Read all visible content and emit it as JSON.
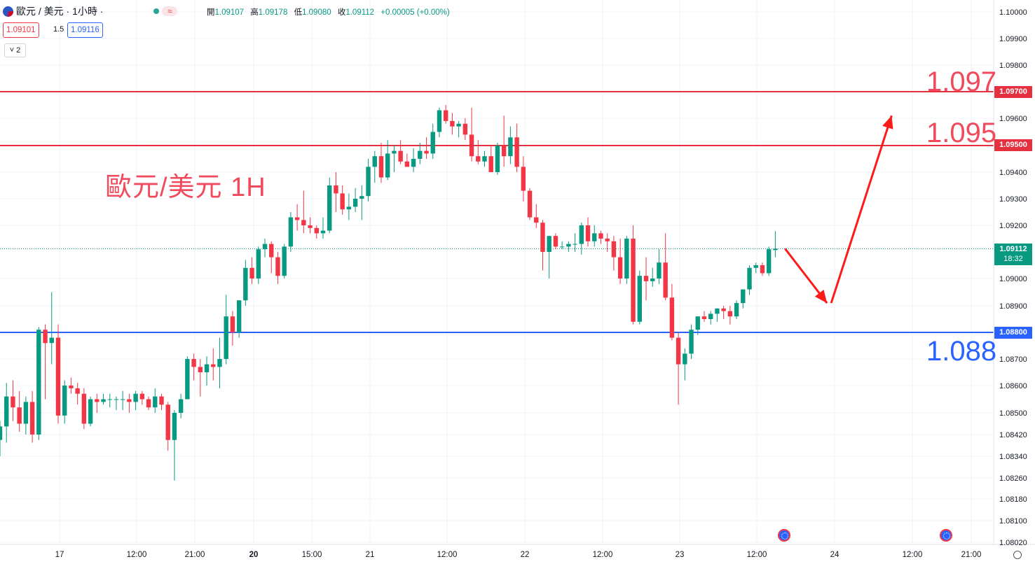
{
  "header": {
    "symbol": "歐元 / 美元 · 1小時 ·",
    "ohlc": [
      {
        "k": "開",
        "v": "1.09107"
      },
      {
        "k": "高",
        "v": "1.09178"
      },
      {
        "k": "低",
        "v": "1.09080"
      },
      {
        "k": "收",
        "v": "1.09112"
      },
      {
        "k": "",
        "v": "+0.00005 (+0.00%)"
      }
    ],
    "sell_price": "1.09101",
    "spread": "1.5",
    "buy_price": "1.09116",
    "indicator_toggle": "˅ 2",
    "wave_icon": "≈"
  },
  "annotation": {
    "title": "歐元/美元 1H",
    "level_1097": "1.097",
    "level_1095": "1.095",
    "level_1088": "1.088"
  },
  "price_tags": {
    "tag_1097": "1.09700",
    "tag_1095": "1.09500",
    "tag_1088": "1.08800",
    "current_price": "1.09112",
    "countdown": "18:32"
  },
  "colors": {
    "up": "#089981",
    "down": "#f23645",
    "resistance": "#e5303f",
    "support": "#2962ff",
    "arrow": "#ff1a1a"
  },
  "chart_data": {
    "type": "candlestick",
    "symbol": "EUR/USD",
    "interval": "1H",
    "y_axis_ticks": [
      1.1,
      1.099,
      1.098,
      1.097,
      1.096,
      1.095,
      1.094,
      1.093,
      1.092,
      1.09112,
      1.09,
      1.089,
      1.088,
      1.087,
      1.086,
      1.085,
      1.0842,
      1.0834,
      1.0826,
      1.0818,
      1.081,
      1.0802
    ],
    "y_axis_labels": [
      "1.10000",
      "1.09900",
      "1.09800",
      "1.09700",
      "1.09600",
      "1.09500",
      "1.09400",
      "1.09300",
      "1.09200",
      "",
      "1.09000",
      "1.08900",
      "",
      "1.08700",
      "1.08600",
      "1.08500",
      "1.08420",
      "1.08340",
      "1.08260",
      "1.08180",
      "1.08100",
      "1.08020"
    ],
    "x_axis_labels": [
      "17",
      "12:00",
      "21:00",
      "20",
      "15:00",
      "21",
      "12:00",
      "22",
      "12:00",
      "23",
      "12:00",
      "24",
      "12:00",
      "21:00"
    ],
    "x_axis_bold": [
      "20"
    ],
    "horizontal_levels": [
      {
        "price": 1.097,
        "color": "resistance"
      },
      {
        "price": 1.095,
        "color": "resistance"
      },
      {
        "price": 1.088,
        "color": "support"
      }
    ],
    "current_price": 1.09112,
    "projection": [
      {
        "from_candle": 110,
        "to_offset": 8,
        "to_price": 1.0891
      },
      {
        "to_offset": 18,
        "to_price": 1.0961
      }
    ],
    "candles": [
      {
        "o": 1.084,
        "h": 1.0847,
        "l": 1.0834,
        "c": 1.0845
      },
      {
        "o": 1.0845,
        "h": 1.0861,
        "l": 1.0839,
        "c": 1.0856
      },
      {
        "o": 1.0856,
        "h": 1.0862,
        "l": 1.0847,
        "c": 1.0852
      },
      {
        "o": 1.0852,
        "h": 1.0858,
        "l": 1.0843,
        "c": 1.0846
      },
      {
        "o": 1.0846,
        "h": 1.0856,
        "l": 1.0842,
        "c": 1.0854
      },
      {
        "o": 1.0854,
        "h": 1.0858,
        "l": 1.0839,
        "c": 1.0842
      },
      {
        "o": 1.0842,
        "h": 1.0882,
        "l": 1.084,
        "c": 1.0881
      },
      {
        "o": 1.0881,
        "h": 1.0883,
        "l": 1.0855,
        "c": 1.0876
      },
      {
        "o": 1.0876,
        "h": 1.0895,
        "l": 1.0868,
        "c": 1.0878
      },
      {
        "o": 1.0878,
        "h": 1.0883,
        "l": 1.0846,
        "c": 1.0849
      },
      {
        "o": 1.0849,
        "h": 1.0862,
        "l": 1.0846,
        "c": 1.086
      },
      {
        "o": 1.086,
        "h": 1.0863,
        "l": 1.0857,
        "c": 1.0859
      },
      {
        "o": 1.0859,
        "h": 1.0861,
        "l": 1.0853,
        "c": 1.0857
      },
      {
        "o": 1.0857,
        "h": 1.0859,
        "l": 1.0844,
        "c": 1.0846
      },
      {
        "o": 1.0846,
        "h": 1.0856,
        "l": 1.0845,
        "c": 1.0855
      },
      {
        "o": 1.0855,
        "h": 1.0857,
        "l": 1.085,
        "c": 1.0854
      },
      {
        "o": 1.0854,
        "h": 1.0857,
        "l": 1.0853,
        "c": 1.0855
      },
      {
        "o": 1.0855,
        "h": 1.0857,
        "l": 1.0852,
        "c": 1.0855
      },
      {
        "o": 1.0855,
        "h": 1.0856,
        "l": 1.0851,
        "c": 1.0855
      },
      {
        "o": 1.0855,
        "h": 1.0858,
        "l": 1.0851,
        "c": 1.0855
      },
      {
        "o": 1.0855,
        "h": 1.0857,
        "l": 1.085,
        "c": 1.0854
      },
      {
        "o": 1.0854,
        "h": 1.0858,
        "l": 1.0851,
        "c": 1.0857
      },
      {
        "o": 1.0857,
        "h": 1.0858,
        "l": 1.0853,
        "c": 1.0855
      },
      {
        "o": 1.0855,
        "h": 1.0856,
        "l": 1.0851,
        "c": 1.0852
      },
      {
        "o": 1.0852,
        "h": 1.0859,
        "l": 1.085,
        "c": 1.0856
      },
      {
        "o": 1.0856,
        "h": 1.0857,
        "l": 1.0851,
        "c": 1.0853
      },
      {
        "o": 1.0853,
        "h": 1.0854,
        "l": 1.0836,
        "c": 1.084
      },
      {
        "o": 1.084,
        "h": 1.0851,
        "l": 1.0825,
        "c": 1.085
      },
      {
        "o": 1.085,
        "h": 1.0857,
        "l": 1.0848,
        "c": 1.0855
      },
      {
        "o": 1.0855,
        "h": 1.0871,
        "l": 1.0855,
        "c": 1.087
      },
      {
        "o": 1.087,
        "h": 1.0872,
        "l": 1.0862,
        "c": 1.0867
      },
      {
        "o": 1.0867,
        "h": 1.087,
        "l": 1.0856,
        "c": 1.0865
      },
      {
        "o": 1.0865,
        "h": 1.0871,
        "l": 1.086,
        "c": 1.0868
      },
      {
        "o": 1.0868,
        "h": 1.0874,
        "l": 1.0862,
        "c": 1.0867
      },
      {
        "o": 1.0867,
        "h": 1.0878,
        "l": 1.0859,
        "c": 1.087
      },
      {
        "o": 1.087,
        "h": 1.0894,
        "l": 1.0868,
        "c": 1.0886
      },
      {
        "o": 1.0886,
        "h": 1.0888,
        "l": 1.0875,
        "c": 1.088
      },
      {
        "o": 1.088,
        "h": 1.0892,
        "l": 1.0878,
        "c": 1.0892
      },
      {
        "o": 1.0892,
        "h": 1.0907,
        "l": 1.089,
        "c": 1.0904
      },
      {
        "o": 1.0904,
        "h": 1.0908,
        "l": 1.0898,
        "c": 1.09
      },
      {
        "o": 1.09,
        "h": 1.0912,
        "l": 1.0898,
        "c": 1.0911
      },
      {
        "o": 1.0911,
        "h": 1.0915,
        "l": 1.0908,
        "c": 1.0913
      },
      {
        "o": 1.0913,
        "h": 1.0914,
        "l": 1.0902,
        "c": 1.0908
      },
      {
        "o": 1.0908,
        "h": 1.091,
        "l": 1.0898,
        "c": 1.0901
      },
      {
        "o": 1.0901,
        "h": 1.0913,
        "l": 1.09,
        "c": 1.0912
      },
      {
        "o": 1.0912,
        "h": 1.0925,
        "l": 1.091,
        "c": 1.0923
      },
      {
        "o": 1.0923,
        "h": 1.0928,
        "l": 1.0918,
        "c": 1.0922
      },
      {
        "o": 1.0922,
        "h": 1.0933,
        "l": 1.0917,
        "c": 1.092
      },
      {
        "o": 1.092,
        "h": 1.0923,
        "l": 1.0917,
        "c": 1.0919
      },
      {
        "o": 1.0919,
        "h": 1.092,
        "l": 1.0915,
        "c": 1.0917
      },
      {
        "o": 1.0917,
        "h": 1.0923,
        "l": 1.0915,
        "c": 1.0918
      },
      {
        "o": 1.0918,
        "h": 1.0938,
        "l": 1.0917,
        "c": 1.0935
      },
      {
        "o": 1.0935,
        "h": 1.094,
        "l": 1.0925,
        "c": 1.0932
      },
      {
        "o": 1.0932,
        "h": 1.0935,
        "l": 1.0924,
        "c": 1.0926
      },
      {
        "o": 1.0926,
        "h": 1.0932,
        "l": 1.0922,
        "c": 1.0927
      },
      {
        "o": 1.0927,
        "h": 1.0934,
        "l": 1.0925,
        "c": 1.093
      },
      {
        "o": 1.093,
        "h": 1.0935,
        "l": 1.0922,
        "c": 1.0931
      },
      {
        "o": 1.0931,
        "h": 1.0945,
        "l": 1.0929,
        "c": 1.0942
      },
      {
        "o": 1.0942,
        "h": 1.0948,
        "l": 1.0936,
        "c": 1.0946
      },
      {
        "o": 1.0946,
        "h": 1.0951,
        "l": 1.0936,
        "c": 1.0938
      },
      {
        "o": 1.0938,
        "h": 1.0952,
        "l": 1.0937,
        "c": 1.0947
      },
      {
        "o": 1.0947,
        "h": 1.095,
        "l": 1.094,
        "c": 1.0948
      },
      {
        "o": 1.0948,
        "h": 1.0952,
        "l": 1.0943,
        "c": 1.0944
      },
      {
        "o": 1.0944,
        "h": 1.0947,
        "l": 1.0942,
        "c": 1.0942
      },
      {
        "o": 1.0942,
        "h": 1.0949,
        "l": 1.094,
        "c": 1.0945
      },
      {
        "o": 1.0945,
        "h": 1.0951,
        "l": 1.0943,
        "c": 1.0948
      },
      {
        "o": 1.0948,
        "h": 1.0953,
        "l": 1.0945,
        "c": 1.0947
      },
      {
        "o": 1.0947,
        "h": 1.0958,
        "l": 1.0945,
        "c": 1.0955
      },
      {
        "o": 1.0955,
        "h": 1.0964,
        "l": 1.0953,
        "c": 1.0963
      },
      {
        "o": 1.0963,
        "h": 1.0965,
        "l": 1.0958,
        "c": 1.0959
      },
      {
        "o": 1.0959,
        "h": 1.0962,
        "l": 1.0954,
        "c": 1.0957
      },
      {
        "o": 1.0957,
        "h": 1.0959,
        "l": 1.0953,
        "c": 1.0958
      },
      {
        "o": 1.0958,
        "h": 1.096,
        "l": 1.0952,
        "c": 1.0954
      },
      {
        "o": 1.0954,
        "h": 1.0964,
        "l": 1.0944,
        "c": 1.0946
      },
      {
        "o": 1.0946,
        "h": 1.0952,
        "l": 1.0943,
        "c": 1.0944
      },
      {
        "o": 1.0944,
        "h": 1.0948,
        "l": 1.0942,
        "c": 1.0946
      },
      {
        "o": 1.0946,
        "h": 1.095,
        "l": 1.094,
        "c": 1.094
      },
      {
        "o": 1.094,
        "h": 1.0951,
        "l": 1.0939,
        "c": 1.095
      },
      {
        "o": 1.095,
        "h": 1.0961,
        "l": 1.0942,
        "c": 1.0946
      },
      {
        "o": 1.0946,
        "h": 1.0957,
        "l": 1.0943,
        "c": 1.0953
      },
      {
        "o": 1.0953,
        "h": 1.0958,
        "l": 1.094,
        "c": 1.0942
      },
      {
        "o": 1.0942,
        "h": 1.0946,
        "l": 1.0929,
        "c": 1.0933
      },
      {
        "o": 1.0933,
        "h": 1.0934,
        "l": 1.0922,
        "c": 1.0923
      },
      {
        "o": 1.0923,
        "h": 1.0928,
        "l": 1.0919,
        "c": 1.0921
      },
      {
        "o": 1.0921,
        "h": 1.0922,
        "l": 1.0903,
        "c": 1.091
      },
      {
        "o": 1.091,
        "h": 1.0916,
        "l": 1.09,
        "c": 1.0916
      },
      {
        "o": 1.0916,
        "h": 1.0917,
        "l": 1.0911,
        "c": 1.0912
      },
      {
        "o": 1.0912,
        "h": 1.0914,
        "l": 1.0911,
        "c": 1.0912
      },
      {
        "o": 1.0912,
        "h": 1.0914,
        "l": 1.091,
        "c": 1.0913
      },
      {
        "o": 1.0913,
        "h": 1.0917,
        "l": 1.091,
        "c": 1.0913
      },
      {
        "o": 1.0913,
        "h": 1.0921,
        "l": 1.0909,
        "c": 1.092
      },
      {
        "o": 1.092,
        "h": 1.0923,
        "l": 1.0912,
        "c": 1.0914
      },
      {
        "o": 1.0914,
        "h": 1.092,
        "l": 1.0912,
        "c": 1.0917
      },
      {
        "o": 1.0917,
        "h": 1.0918,
        "l": 1.0913,
        "c": 1.0915
      },
      {
        "o": 1.0915,
        "h": 1.0917,
        "l": 1.091,
        "c": 1.0914
      },
      {
        "o": 1.0914,
        "h": 1.0916,
        "l": 1.0903,
        "c": 1.0908
      },
      {
        "o": 1.0908,
        "h": 1.0915,
        "l": 1.0898,
        "c": 1.09
      },
      {
        "o": 1.09,
        "h": 1.0916,
        "l": 1.0898,
        "c": 1.0915
      },
      {
        "o": 1.0915,
        "h": 1.092,
        "l": 1.0883,
        "c": 1.0884
      },
      {
        "o": 1.0884,
        "h": 1.0903,
        "l": 1.0883,
        "c": 1.0901
      },
      {
        "o": 1.0901,
        "h": 1.0908,
        "l": 1.0892,
        "c": 1.0899
      },
      {
        "o": 1.0899,
        "h": 1.0904,
        "l": 1.0897,
        "c": 1.09
      },
      {
        "o": 1.09,
        "h": 1.0911,
        "l": 1.0898,
        "c": 1.0906
      },
      {
        "o": 1.0906,
        "h": 1.0917,
        "l": 1.0892,
        "c": 1.0893
      },
      {
        "o": 1.0893,
        "h": 1.0898,
        "l": 1.0877,
        "c": 1.0878
      },
      {
        "o": 1.0878,
        "h": 1.088,
        "l": 1.0853,
        "c": 1.0868
      },
      {
        "o": 1.0868,
        "h": 1.0874,
        "l": 1.0862,
        "c": 1.0872
      },
      {
        "o": 1.0872,
        "h": 1.0883,
        "l": 1.087,
        "c": 1.0881
      },
      {
        "o": 1.0881,
        "h": 1.0886,
        "l": 1.0879,
        "c": 1.0886
      },
      {
        "o": 1.0886,
        "h": 1.0888,
        "l": 1.0884,
        "c": 1.0885
      },
      {
        "o": 1.0885,
        "h": 1.0888,
        "l": 1.0883,
        "c": 1.0887
      },
      {
        "o": 1.0887,
        "h": 1.0889,
        "l": 1.0884,
        "c": 1.0889
      },
      {
        "o": 1.0889,
        "h": 1.089,
        "l": 1.0885,
        "c": 1.0888
      },
      {
        "o": 1.0888,
        "h": 1.089,
        "l": 1.0883,
        "c": 1.0886
      },
      {
        "o": 1.0886,
        "h": 1.0892,
        "l": 1.0885,
        "c": 1.0891
      },
      {
        "o": 1.0891,
        "h": 1.0896,
        "l": 1.0889,
        "c": 1.0896
      },
      {
        "o": 1.0896,
        "h": 1.0905,
        "l": 1.0894,
        "c": 1.0904
      },
      {
        "o": 1.0904,
        "h": 1.0906,
        "l": 1.0902,
        "c": 1.0905
      },
      {
        "o": 1.0905,
        "h": 1.0906,
        "l": 1.0901,
        "c": 1.0902
      },
      {
        "o": 1.0902,
        "h": 1.0912,
        "l": 1.0901,
        "c": 1.0911
      },
      {
        "o": 1.09107,
        "h": 1.09178,
        "l": 1.0908,
        "c": 1.09112
      }
    ]
  }
}
